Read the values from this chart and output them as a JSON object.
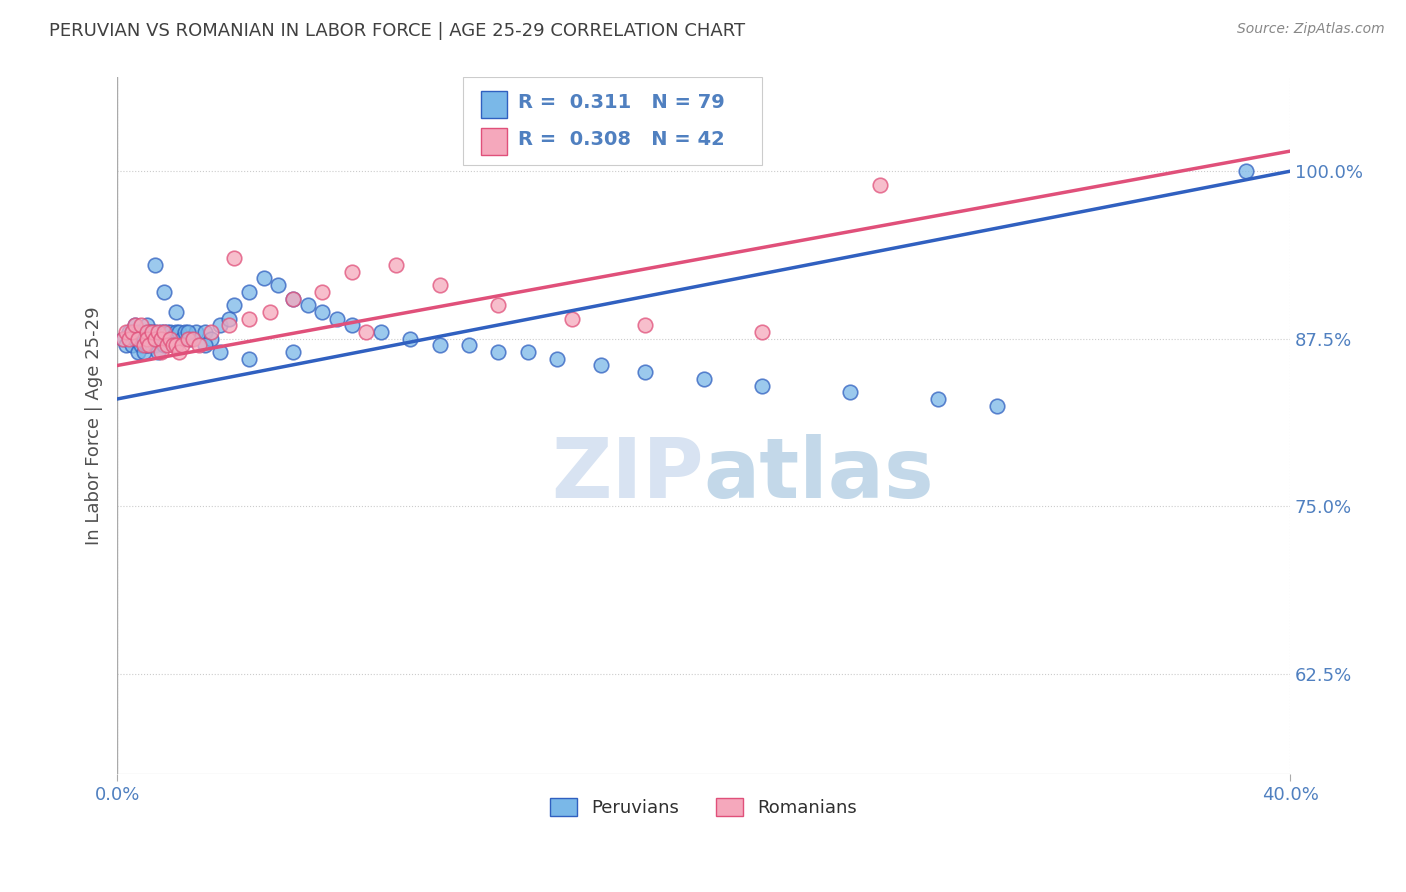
{
  "title": "PERUVIAN VS ROMANIAN IN LABOR FORCE | AGE 25-29 CORRELATION CHART",
  "source_text": "Source: ZipAtlas.com",
  "ylabel": "In Labor Force | Age 25-29",
  "xlim": [
    0.0,
    40.0
  ],
  "ylim": [
    55.0,
    107.0
  ],
  "yticks": [
    62.5,
    75.0,
    87.5,
    100.0
  ],
  "ytick_labels": [
    "62.5%",
    "75.0%",
    "87.5%",
    "100.0%"
  ],
  "legend_R_peru": "0.311",
  "legend_N_peru": "79",
  "legend_R_roman": "0.308",
  "legend_N_roman": "42",
  "peru_color": "#7ab8e8",
  "roman_color": "#f5a8bc",
  "peru_line_color": "#3060c0",
  "roman_line_color": "#e0507a",
  "legend_label_peru": "Peruvians",
  "legend_label_roman": "Romanians",
  "peru_x": [
    0.2,
    0.3,
    0.4,
    0.5,
    0.5,
    0.6,
    0.6,
    0.7,
    0.7,
    0.7,
    0.8,
    0.8,
    0.9,
    0.9,
    1.0,
    1.0,
    1.0,
    1.0,
    1.1,
    1.1,
    1.2,
    1.2,
    1.2,
    1.3,
    1.3,
    1.4,
    1.4,
    1.5,
    1.5,
    1.6,
    1.6,
    1.7,
    1.7,
    1.8,
    1.8,
    1.9,
    2.0,
    2.0,
    2.1,
    2.2,
    2.3,
    2.5,
    2.7,
    3.0,
    3.2,
    3.5,
    3.8,
    4.0,
    4.5,
    5.0,
    5.5,
    6.0,
    6.5,
    7.0,
    7.5,
    8.0,
    9.0,
    10.0,
    11.0,
    12.0,
    13.0,
    14.0,
    15.0,
    16.5,
    18.0,
    20.0,
    22.0,
    25.0,
    28.0,
    30.0,
    1.3,
    1.6,
    2.0,
    2.4,
    3.0,
    3.5,
    4.5,
    6.0,
    38.5
  ],
  "peru_y": [
    87.5,
    87.0,
    88.0,
    88.0,
    87.0,
    87.5,
    88.5,
    87.5,
    88.0,
    86.5,
    87.0,
    88.0,
    87.5,
    86.5,
    87.0,
    88.0,
    88.5,
    87.0,
    87.5,
    88.0,
    88.0,
    87.0,
    87.5,
    88.0,
    87.0,
    87.5,
    86.5,
    87.5,
    88.0,
    88.0,
    87.0,
    87.5,
    88.0,
    87.5,
    88.0,
    87.5,
    87.0,
    88.0,
    88.0,
    87.5,
    88.0,
    87.5,
    88.0,
    88.0,
    87.5,
    88.5,
    89.0,
    90.0,
    91.0,
    92.0,
    91.5,
    90.5,
    90.0,
    89.5,
    89.0,
    88.5,
    88.0,
    87.5,
    87.0,
    87.0,
    86.5,
    86.5,
    86.0,
    85.5,
    85.0,
    84.5,
    84.0,
    83.5,
    83.0,
    82.5,
    93.0,
    91.0,
    89.5,
    88.0,
    87.0,
    86.5,
    86.0,
    86.5,
    100.0
  ],
  "roman_x": [
    0.2,
    0.3,
    0.4,
    0.5,
    0.6,
    0.7,
    0.8,
    0.9,
    1.0,
    1.0,
    1.1,
    1.2,
    1.3,
    1.4,
    1.5,
    1.5,
    1.6,
    1.7,
    1.8,
    1.9,
    2.0,
    2.1,
    2.2,
    2.4,
    2.6,
    2.8,
    3.2,
    3.8,
    4.5,
    5.2,
    6.0,
    7.0,
    8.0,
    9.5,
    11.0,
    13.0,
    15.5,
    18.0,
    22.0,
    4.0,
    8.5,
    26.0
  ],
  "roman_y": [
    87.5,
    88.0,
    87.5,
    88.0,
    88.5,
    87.5,
    88.5,
    87.0,
    88.0,
    87.5,
    87.0,
    88.0,
    87.5,
    88.0,
    87.5,
    86.5,
    88.0,
    87.0,
    87.5,
    87.0,
    87.0,
    86.5,
    87.0,
    87.5,
    87.5,
    87.0,
    88.0,
    88.5,
    89.0,
    89.5,
    90.5,
    91.0,
    92.5,
    93.0,
    91.5,
    90.0,
    89.0,
    88.5,
    88.0,
    93.5,
    88.0,
    99.0
  ],
  "peru_trend_x0": 0.0,
  "peru_trend_y0": 83.0,
  "peru_trend_x1": 40.0,
  "peru_trend_y1": 100.0,
  "roman_trend_x0": 0.0,
  "roman_trend_y0": 85.5,
  "roman_trend_x1": 40.0,
  "roman_trend_y1": 101.5,
  "watermark_zip": "ZIP",
  "watermark_atlas": "atlas",
  "background_color": "#ffffff",
  "title_color": "#404040",
  "axis_color": "#5080c0",
  "grid_color": "#cccccc"
}
